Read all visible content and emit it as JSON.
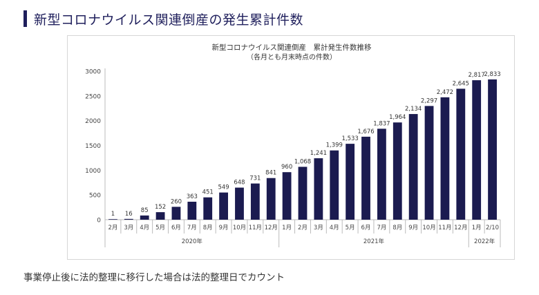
{
  "page": {
    "heading": "新型コロナウイルス関連倒産の発生累計件数",
    "note": "事業停止後に法的整理に移行した場合は法的整理日でカウント"
  },
  "chart_data": {
    "type": "bar",
    "title": "新型コロナウイルス関連倒産　累計発生件数推移",
    "subtitle": "（各月とも月末時点の件数）",
    "xlabel": "",
    "ylabel": "",
    "ylim": [
      0,
      3000
    ],
    "yticks": [
      0,
      500,
      1000,
      1500,
      2000,
      2500,
      3000
    ],
    "grid": false,
    "legend": "none",
    "bar_color": "#1b1b50",
    "categories": [
      "2月",
      "3月",
      "4月",
      "5月",
      "6月",
      "7月",
      "8月",
      "9月",
      "10月",
      "11月",
      "12月",
      "1月",
      "2月",
      "3月",
      "4月",
      "5月",
      "6月",
      "7月",
      "8月",
      "9月",
      "10月",
      "11月",
      "12月",
      "1月",
      "2/10"
    ],
    "values": [
      1,
      16,
      85,
      152,
      260,
      363,
      451,
      549,
      648,
      731,
      841,
      960,
      1068,
      1241,
      1399,
      1533,
      1676,
      1837,
      1964,
      2134,
      2297,
      2472,
      2645,
      2817,
      2833
    ],
    "value_labels": [
      "1",
      "16",
      "85",
      "152",
      "260",
      "363",
      "451",
      "549",
      "648",
      "731",
      "841",
      "960",
      "1,068",
      "1,241",
      "1,399",
      "1,533",
      "1,676",
      "1,837",
      "1,964",
      "2,134",
      "2,297",
      "2,472",
      "2,645",
      "2,817",
      "2,833"
    ],
    "groups": [
      {
        "label": "2020年",
        "count": 11
      },
      {
        "label": "2021年",
        "count": 12
      },
      {
        "label": "2022年",
        "count": 2
      }
    ]
  }
}
